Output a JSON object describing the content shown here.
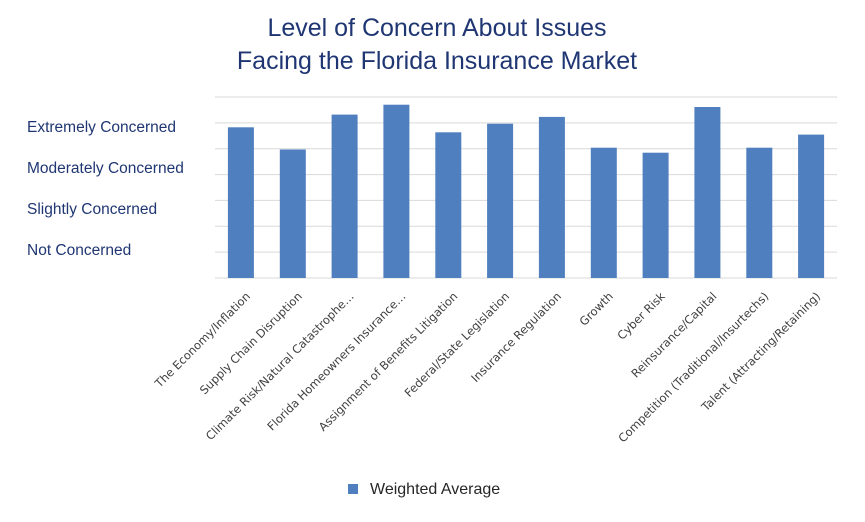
{
  "chart_data": {
    "type": "bar",
    "title_lines": [
      "Level of Concern About Issues",
      "Facing the Florida Insurance Market"
    ],
    "y_tick_labels": [
      "Extremely Concerned",
      "Moderately Concerned",
      "Slightly Concerned",
      "Not Concerned"
    ],
    "categories": [
      "The Economy/Inflation",
      "Supply Chain Disruption",
      "Climate Risk/Natural Catastrophe…",
      "Florida Homeowners Insurance…",
      "Assignment of Benefits Litigation",
      "Federal/State Legislation",
      "Insurance Regulation",
      "Growth",
      "Cyber Risk",
      "Reinsurance/Capital",
      "Competition (Traditional/Insurtechs)",
      "Talent (Attracting/Retaining)"
    ],
    "series": [
      {
        "name": "Weighted Average",
        "values": [
          3.33,
          2.84,
          3.61,
          3.83,
          3.22,
          3.41,
          3.56,
          2.88,
          2.77,
          3.78,
          2.88,
          3.17
        ]
      }
    ],
    "ylim": [
      0,
      4.0
    ],
    "grid": true,
    "legend_position": "bottom",
    "bar_color": "#4f7fbe",
    "grid_color": "#d9d9d9"
  }
}
